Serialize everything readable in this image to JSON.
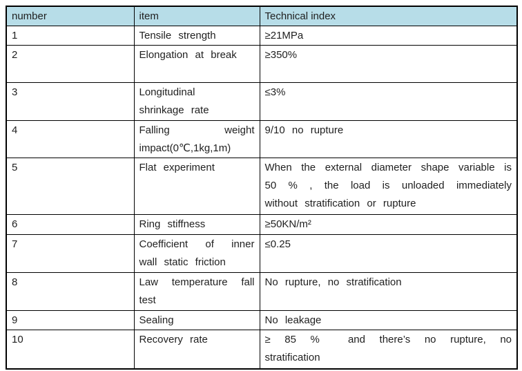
{
  "colors": {
    "header_bg": "#b7dde8",
    "border": "#000000",
    "text": "#1f1f1f"
  },
  "table": {
    "columns": [
      {
        "key": "number",
        "label": "number"
      },
      {
        "key": "item",
        "label": "item"
      },
      {
        "key": "index",
        "label": "Technical index"
      }
    ],
    "rows": [
      {
        "number": "1",
        "item": "Tensile strength",
        "index": "≥21MPa"
      },
      {
        "number": "2",
        "item": "Elongation at break",
        "index": "≥350%"
      },
      {
        "number": "3",
        "item": "Longitudinal\nshrinkage rate",
        "index": "≤3%"
      },
      {
        "number": "4",
        "item": "Falling weight impact(0℃,1kg,1m)",
        "index": "9/10 no rupture"
      },
      {
        "number": "5",
        "item": "Flat experiment",
        "index": "When the external diameter shape variable is 50 % , the load is unloaded immediately without stratification or rupture"
      },
      {
        "number": "6",
        "item": "Ring stiffness",
        "index": "≥50KN/m²"
      },
      {
        "number": "7",
        "item": "Coefficient of inner wall static friction",
        "index": "≤0.25"
      },
      {
        "number": "8",
        "item": "Law temperature fall test",
        "index": "No rupture, no stratification"
      },
      {
        "number": "9",
        "item": "Sealing",
        "index": "No leakage"
      },
      {
        "number": "10",
        "item": "Recovery rate",
        "index": "≥ 85 %  and there’s no rupture, no stratification"
      }
    ]
  }
}
